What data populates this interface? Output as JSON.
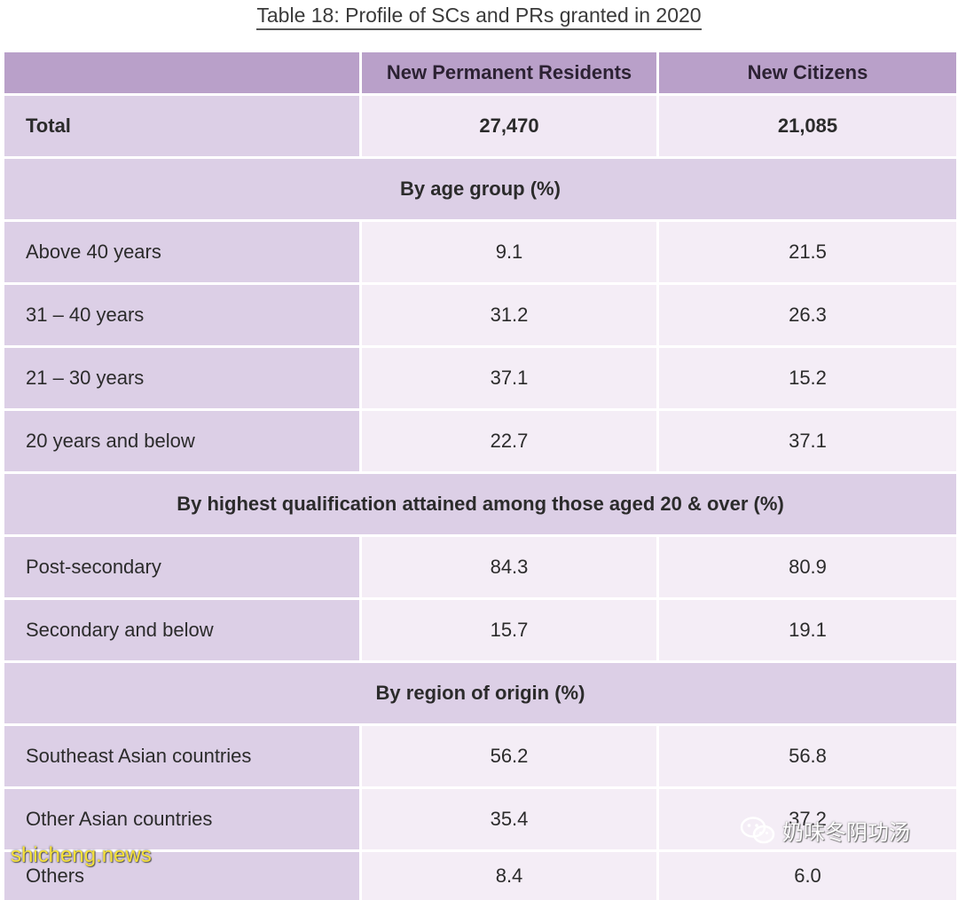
{
  "title": "Table 18: Profile of SCs and PRs granted in 2020",
  "columns": [
    "",
    "New Permanent Residents",
    "New Citizens"
  ],
  "total": {
    "label": "Total",
    "pr": "27,470",
    "citizens": "21,085"
  },
  "sections": [
    {
      "heading": "By age group (%)",
      "rows": [
        {
          "label": "Above 40 years",
          "pr": "9.1",
          "citizens": "21.5"
        },
        {
          "label": "31 – 40 years",
          "pr": "31.2",
          "citizens": "26.3"
        },
        {
          "label": "21 – 30 years",
          "pr": "37.1",
          "citizens": "15.2"
        },
        {
          "label": "20 years and below",
          "pr": "22.7",
          "citizens": "37.1"
        }
      ]
    },
    {
      "heading": "By highest qualification attained among those aged 20 & over (%)",
      "rows": [
        {
          "label": "Post-secondary",
          "pr": "84.3",
          "citizens": "80.9"
        },
        {
          "label": "Secondary and below",
          "pr": "15.7",
          "citizens": "19.1"
        }
      ]
    },
    {
      "heading": "By region of origin (%)",
      "rows": [
        {
          "label": "Southeast Asian countries",
          "pr": "56.2",
          "citizens": "56.8"
        },
        {
          "label": "Other Asian countries",
          "pr": "35.4",
          "citizens": "37.2"
        },
        {
          "label": "Others",
          "pr": "8.4",
          "citizens": "6.0"
        }
      ]
    }
  ],
  "watermarks": {
    "left": "shicheng.news",
    "right": "奶味冬阴功汤",
    "right_icon": "wechat-icon"
  }
}
